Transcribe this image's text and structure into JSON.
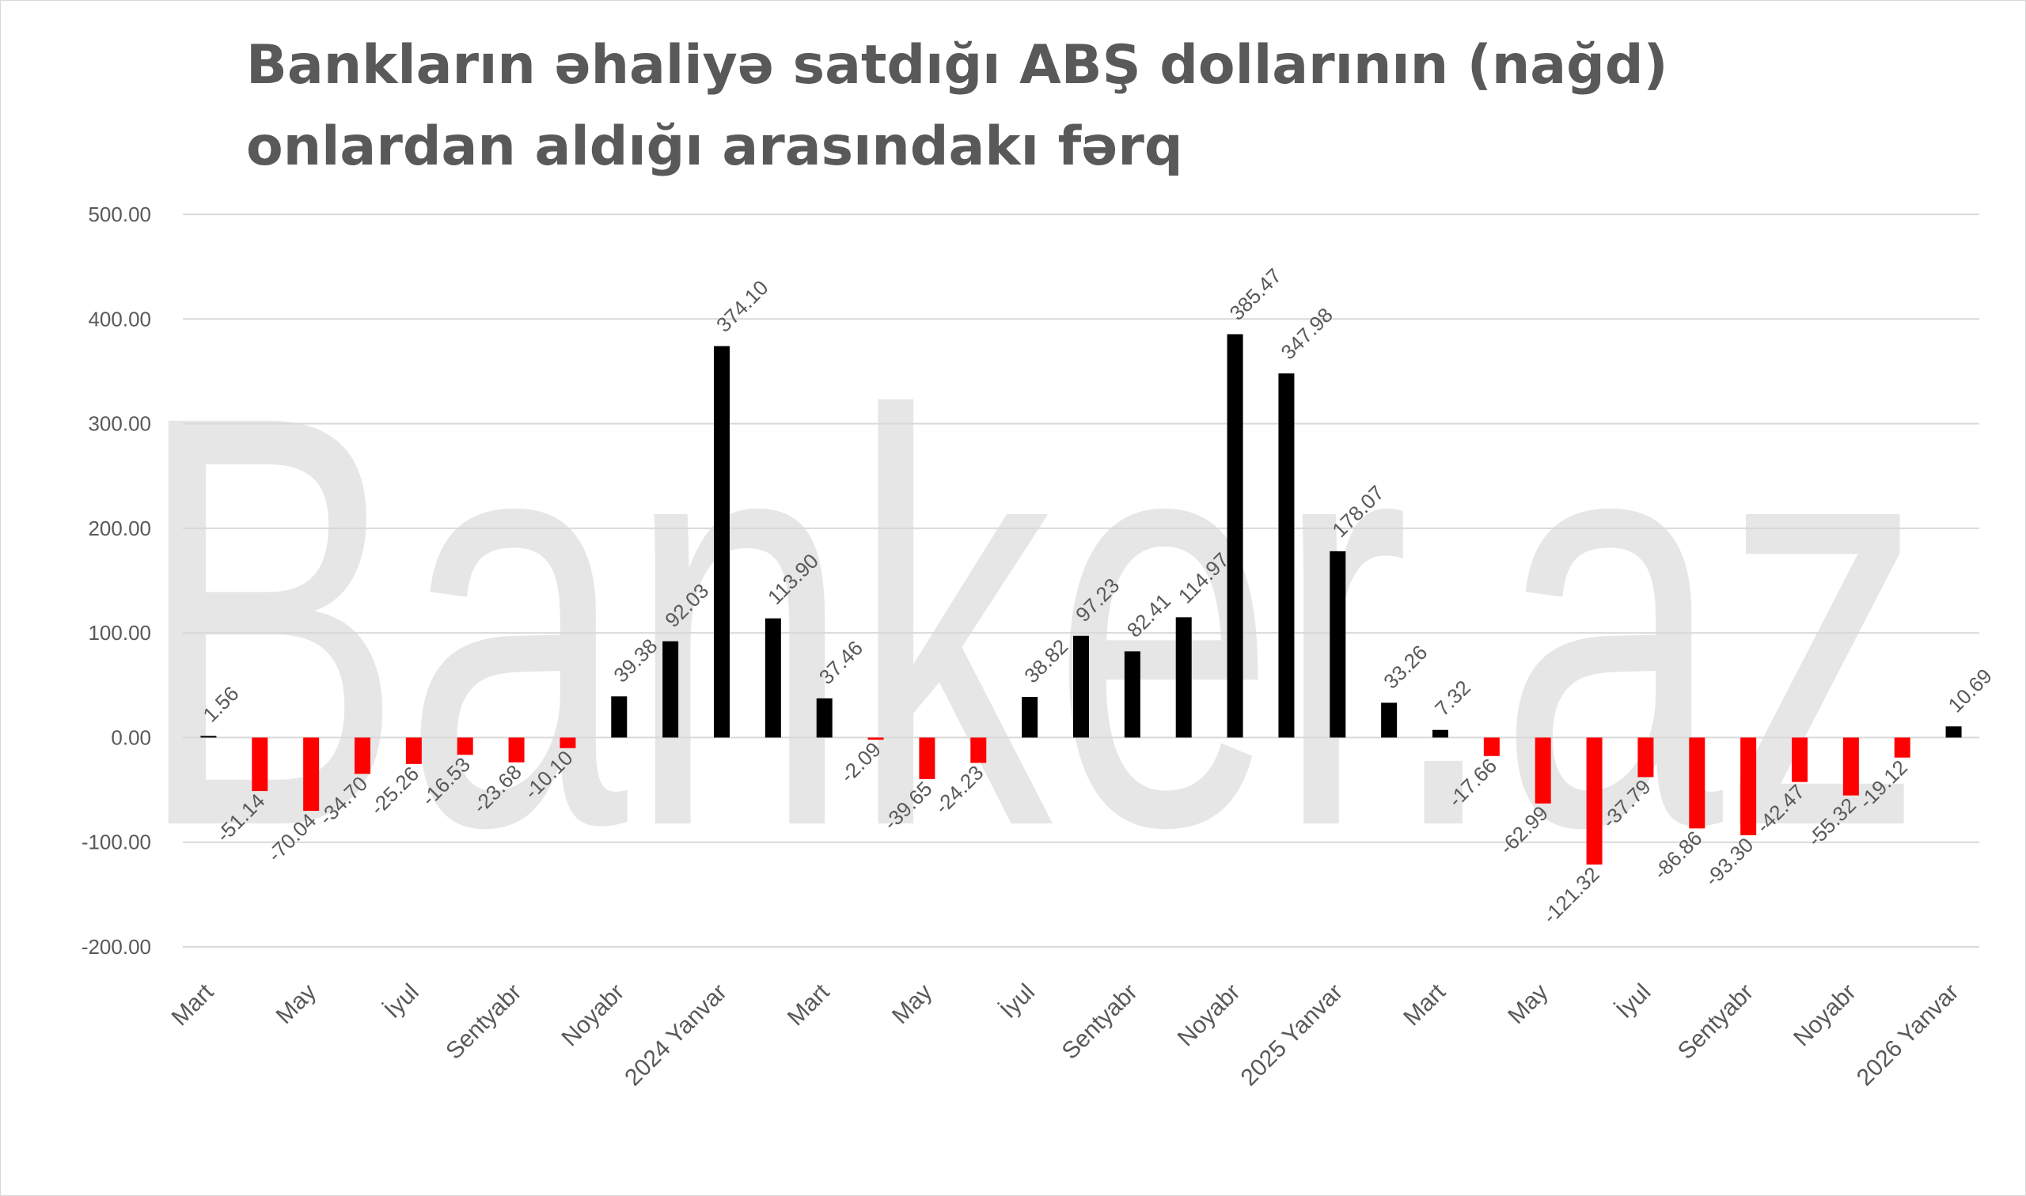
{
  "chart_data": {
    "type": "bar",
    "title": "Bankların əhaliyə satdığı ABŞ dollarının (nağd) onlardan aldığı arasındakı fərq",
    "watermark": "Banker.az",
    "xlabel": "",
    "ylabel": "",
    "ylim": [
      -200,
      500
    ],
    "yticks": [
      -200,
      -100,
      0,
      100,
      200,
      300,
      400,
      500
    ],
    "ytick_labels": [
      "-200.00",
      "-100.00",
      "0.00",
      "100.00",
      "200.00",
      "300.00",
      "400.00",
      "500.00"
    ],
    "grid": true,
    "legend": "none",
    "colors": {
      "positive": "#000000",
      "negative": "#ff0000",
      "gridline": "#d9d9d9",
      "text": "#595959",
      "watermark": "#e6e6e6"
    },
    "x_tick_labels": [
      {
        "index": 0,
        "label": "Mart"
      },
      {
        "index": 2,
        "label": "May"
      },
      {
        "index": 4,
        "label": "İyul"
      },
      {
        "index": 6,
        "label": "Sentyabr"
      },
      {
        "index": 8,
        "label": "Noyabr"
      },
      {
        "index": 10,
        "label": "2024 Yanvar"
      },
      {
        "index": 12,
        "label": "Mart"
      },
      {
        "index": 14,
        "label": "May"
      },
      {
        "index": 16,
        "label": "İyul"
      },
      {
        "index": 18,
        "label": "Sentyabr"
      },
      {
        "index": 20,
        "label": "Noyabr"
      },
      {
        "index": 22,
        "label": "2025 Yanvar"
      },
      {
        "index": 24,
        "label": "Mart"
      },
      {
        "index": 26,
        "label": "May"
      },
      {
        "index": 28,
        "label": "İyul"
      },
      {
        "index": 30,
        "label": "Sentyabr"
      },
      {
        "index": 32,
        "label": "Noyabr"
      },
      {
        "index": 34,
        "label": "2026 Yanvar"
      }
    ],
    "values": [
      1.56,
      -51.14,
      -70.04,
      -34.7,
      -25.26,
      -16.53,
      -23.68,
      -10.1,
      39.38,
      92.03,
      374.1,
      113.9,
      37.46,
      -2.09,
      -39.65,
      -24.23,
      38.82,
      97.23,
      82.41,
      114.97,
      385.47,
      347.98,
      178.07,
      33.26,
      7.32,
      -17.66,
      -62.99,
      -121.32,
      -37.79,
      -86.86,
      -93.3,
      -42.47,
      -55.32,
      -19.12,
      10.69
    ],
    "data_labels": [
      "1.56",
      "-51.14",
      "-70.04",
      "-34.70",
      "-25.26",
      "-16.53",
      "-23.68",
      "-10.10",
      "39.38",
      "92.03",
      "374.10",
      "113.90",
      "37.46",
      "-2.09",
      "-39.65",
      "-24.23",
      "38.82",
      "97.23",
      "82.41",
      "114.97",
      "385.47",
      "347.98",
      "178.07",
      "33.26",
      "7.32",
      "-17.66",
      "-62.99",
      "-121.32",
      "-37.79",
      "-86.86",
      "-93.30",
      "-42.47",
      "-55.32",
      "-19.12",
      "10.69"
    ]
  }
}
